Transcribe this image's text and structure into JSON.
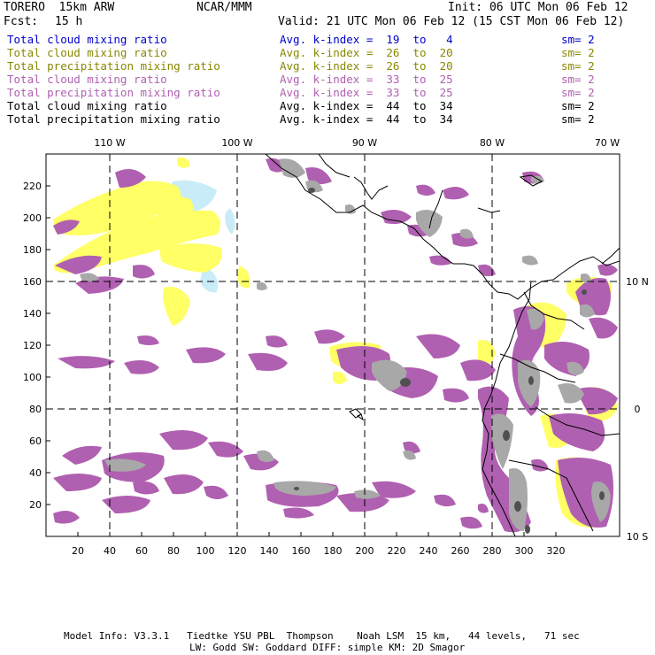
{
  "header": {
    "model": "TORERO  15km ARW",
    "org": "NCAR/MMM",
    "init": "Init: 06 UTC Mon 06 Feb 12",
    "fcst_label": "Fcst:",
    "fcst_value": "15 h",
    "valid": "Valid: 21 UTC Mon 06 Feb 12 (15 CST Mon 06 Feb 12)"
  },
  "legend": [
    {
      "name": "Total cloud mixing ratio",
      "kindex": "Avg. k-index =  19  to   4",
      "sm": "sm= 2",
      "color": "#0000cc"
    },
    {
      "name": "Total cloud mixing ratio",
      "kindex": "Avg. k-index =  26  to  20",
      "sm": "sm= 2",
      "color": "#888800"
    },
    {
      "name": "Total precipitation mixing ratio",
      "kindex": "Avg. k-index =  26  to  20",
      "sm": "sm= 2",
      "color": "#888800"
    },
    {
      "name": "Total cloud mixing ratio",
      "kindex": "Avg. k-index =  33  to  25",
      "sm": "sm= 2",
      "color": "#b060b0"
    },
    {
      "name": "Total precipitation mixing ratio",
      "kindex": "Avg. k-index =  33  to  25",
      "sm": "sm= 2",
      "color": "#b060b0"
    },
    {
      "name": "Total cloud mixing ratio",
      "kindex": "Avg. k-index =  44  to  34",
      "sm": "sm= 2",
      "color": "#000000"
    },
    {
      "name": "Total precipitation mixing ratio",
      "kindex": "Avg. k-index =  44  to  34",
      "sm": "sm= 2",
      "color": "#000000"
    }
  ],
  "map": {
    "lon_labels": [
      "110 W",
      "100 W",
      "90 W",
      "80 W",
      "70 W"
    ],
    "lat_labels": [
      "10 N",
      "0",
      "10 S"
    ],
    "x_ticks": [
      "20",
      "40",
      "60",
      "80",
      "100",
      "120",
      "140",
      "160",
      "180",
      "200",
      "220",
      "240",
      "260",
      "280",
      "300",
      "320"
    ],
    "y_ticks": [
      "20",
      "40",
      "60",
      "80",
      "100",
      "120",
      "140",
      "160",
      "180",
      "200",
      "220"
    ],
    "colors": {
      "light_blue": "#c8ecf8",
      "yellow": "#ffff66",
      "purple": "#b060b0",
      "gray": "#a8a8a8",
      "dark_gray": "#505050"
    }
  },
  "footer": {
    "line1": "Model Info: V3.3.1   Tiedtke YSU PBL  Thompson    Noah LSM  15 km,   44 levels,   71 sec",
    "line2": "LW: Godd SW: Goddard DIFF: simple KM: 2D Smagor"
  }
}
